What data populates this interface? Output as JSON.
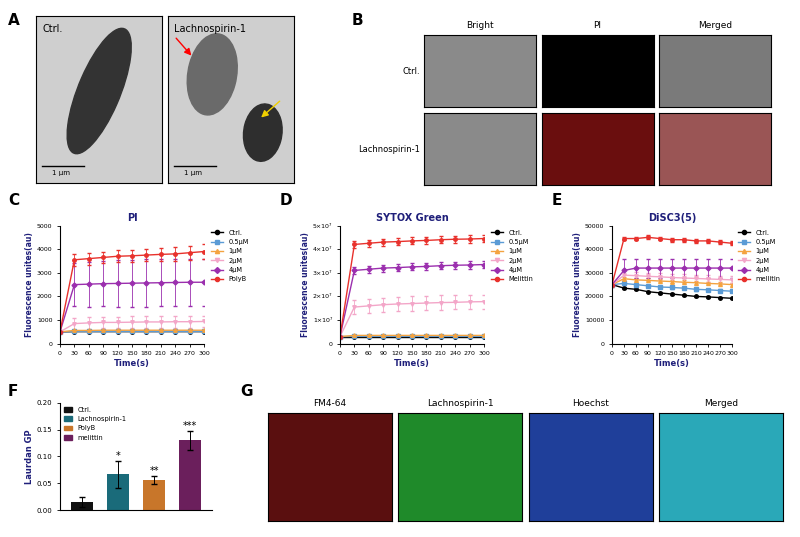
{
  "chart_data": [
    {
      "panel": "C",
      "type": "line",
      "title": "PI",
      "x_label": "Time(s)",
      "y_label": "Fluorescence unites(au)",
      "x": [
        0,
        30,
        60,
        90,
        120,
        150,
        180,
        210,
        240,
        270,
        300
      ],
      "xlim": [
        0,
        300
      ],
      "xticks": [
        0,
        30,
        60,
        90,
        120,
        150,
        180,
        210,
        240,
        270,
        300
      ],
      "ylim": [
        0,
        5000
      ],
      "yticks": [
        0,
        1000,
        2000,
        3000,
        4000,
        5000
      ],
      "legend": "upper left",
      "series": [
        {
          "name": "Ctrl.",
          "color": "#000000",
          "marker": "circle",
          "values": [
            500,
            510,
            510,
            510,
            510,
            510,
            510,
            510,
            510,
            510,
            510
          ],
          "errors": [
            20,
            20,
            20,
            20,
            20,
            20,
            20,
            20,
            20,
            20,
            20
          ]
        },
        {
          "name": "0.5μM",
          "color": "#5b9bd5",
          "marker": "square",
          "values": [
            500,
            520,
            520,
            520,
            520,
            520,
            520,
            520,
            520,
            520,
            520
          ],
          "errors": [
            20,
            20,
            20,
            20,
            20,
            20,
            20,
            20,
            20,
            20,
            20
          ]
        },
        {
          "name": "1μM",
          "color": "#f4a340",
          "marker": "triangle",
          "values": [
            500,
            560,
            560,
            570,
            570,
            570,
            570,
            570,
            570,
            570,
            570
          ],
          "errors": [
            30,
            30,
            30,
            30,
            30,
            30,
            30,
            30,
            30,
            30,
            30
          ]
        },
        {
          "name": "2μM",
          "color": "#f3a6c8",
          "marker": "triangle_down",
          "values": [
            500,
            850,
            880,
            900,
            900,
            910,
            920,
            920,
            930,
            930,
            940
          ],
          "errors": [
            0,
            250,
            250,
            250,
            250,
            250,
            250,
            250,
            250,
            250,
            250
          ]
        },
        {
          "name": "4μM",
          "color": "#9b2fae",
          "marker": "diamond",
          "values": [
            500,
            2500,
            2520,
            2540,
            2550,
            2560,
            2570,
            2580,
            2590,
            2600,
            2600
          ],
          "errors": [
            0,
            900,
            950,
            950,
            1000,
            1000,
            1000,
            1000,
            1000,
            1000,
            1000
          ]
        },
        {
          "name": "PolyB",
          "color": "#e8312c",
          "marker": "circle",
          "values": [
            500,
            3550,
            3600,
            3650,
            3700,
            3720,
            3750,
            3780,
            3800,
            3850,
            3900
          ],
          "errors": [
            0,
            250,
            250,
            250,
            250,
            260,
            270,
            280,
            290,
            300,
            300
          ]
        }
      ]
    },
    {
      "panel": "D",
      "type": "line",
      "title": "SYTOX Green",
      "x_label": "Time(s)",
      "y_label": "Fluorescence unites(au)",
      "x": [
        0,
        30,
        60,
        90,
        120,
        150,
        180,
        210,
        240,
        270,
        300
      ],
      "xlim": [
        0,
        300
      ],
      "xticks": [
        0,
        30,
        60,
        90,
        120,
        150,
        180,
        210,
        240,
        270,
        300
      ],
      "ylim": [
        0,
        50000000
      ],
      "yticks": [
        0,
        {
          "value": 10000000,
          "label": "1×10⁷"
        },
        {
          "value": 20000000,
          "label": "2×10⁷"
        },
        {
          "value": 30000000,
          "label": "3×10⁷"
        },
        {
          "value": 40000000,
          "label": "4×10⁷"
        },
        {
          "value": 50000000,
          "label": "5×10⁷"
        }
      ],
      "legend": "upper left",
      "series": [
        {
          "name": "Ctrl.",
          "color": "#000000",
          "marker": "circle",
          "values": [
            3000000,
            3000000,
            3000000,
            3000000,
            3000000,
            3000000,
            3000000,
            3000000,
            3000000,
            3000000,
            3000000
          ],
          "errors": [
            300000,
            300000,
            300000,
            300000,
            300000,
            300000,
            300000,
            300000,
            300000,
            300000,
            300000
          ]
        },
        {
          "name": "0.5μM",
          "color": "#5b9bd5",
          "marker": "square",
          "values": [
            3000000,
            3100000,
            3100000,
            3100000,
            3100000,
            3100000,
            3100000,
            3100000,
            3100000,
            3100000,
            3100000
          ],
          "errors": [
            300000,
            300000,
            300000,
            300000,
            300000,
            300000,
            300000,
            300000,
            300000,
            300000,
            300000
          ]
        },
        {
          "name": "1μM",
          "color": "#f4a340",
          "marker": "triangle",
          "values": [
            3000000,
            3500000,
            3500000,
            3500000,
            3500000,
            3500000,
            3500000,
            3500000,
            3500000,
            3500000,
            3500000
          ],
          "errors": [
            300000,
            300000,
            300000,
            300000,
            300000,
            300000,
            300000,
            300000,
            300000,
            300000,
            300000
          ]
        },
        {
          "name": "2μM",
          "color": "#f3a6c8",
          "marker": "triangle_down",
          "values": [
            3000000,
            15500000,
            16000000,
            16500000,
            16800000,
            17000000,
            17200000,
            17400000,
            17500000,
            17700000,
            17800000
          ],
          "errors": [
            0,
            3000000,
            3000000,
            3000000,
            3000000,
            3000000,
            3000000,
            3000000,
            3000000,
            3000000,
            3000000
          ]
        },
        {
          "name": "4μM",
          "color": "#9b2fae",
          "marker": "diamond",
          "values": [
            3000000,
            31000000,
            31500000,
            32000000,
            32200000,
            32500000,
            32700000,
            33000000,
            33200000,
            33300000,
            33500000
          ],
          "errors": [
            0,
            1500000,
            1500000,
            1500000,
            1500000,
            1500000,
            1500000,
            1500000,
            1500000,
            1500000,
            1500000
          ]
        },
        {
          "name": "Melittin",
          "color": "#e8312c",
          "marker": "circle",
          "values": [
            3000000,
            42000000,
            42500000,
            43000000,
            43200000,
            43500000,
            43700000,
            44000000,
            44200000,
            44300000,
            44500000
          ],
          "errors": [
            0,
            1500000,
            1500000,
            1500000,
            1500000,
            1500000,
            1500000,
            1500000,
            1500000,
            1500000,
            1500000
          ]
        }
      ]
    },
    {
      "panel": "E",
      "type": "line",
      "title": "DiSC3(5)",
      "x_label": "Time(s)",
      "y_label": "Fluorescence unites(au)",
      "x": [
        0,
        30,
        60,
        90,
        120,
        150,
        180,
        210,
        240,
        270,
        300
      ],
      "xlim": [
        0,
        300
      ],
      "xticks": [
        0,
        30,
        60,
        90,
        120,
        150,
        180,
        210,
        240,
        270,
        300
      ],
      "ylim": [
        0,
        50000
      ],
      "yticks": [
        0,
        10000,
        20000,
        30000,
        40000,
        50000
      ],
      "legend": "upper left",
      "series": [
        {
          "name": "Ctrl.",
          "color": "#000000",
          "marker": "circle",
          "values": [
            25000,
            23500,
            23000,
            22000,
            21500,
            21000,
            20500,
            20000,
            19800,
            19500,
            19200
          ],
          "errors": [
            300,
            300,
            300,
            300,
            300,
            300,
            300,
            300,
            300,
            300,
            300
          ]
        },
        {
          "name": "0.5μM",
          "color": "#5b9bd5",
          "marker": "square",
          "values": [
            25000,
            25500,
            25000,
            24500,
            24000,
            23800,
            23500,
            23000,
            22800,
            22500,
            22200
          ],
          "errors": [
            500,
            500,
            500,
            500,
            500,
            500,
            500,
            500,
            500,
            500,
            500
          ]
        },
        {
          "name": "1μM",
          "color": "#f4a340",
          "marker": "triangle",
          "values": [
            25000,
            27500,
            27000,
            26800,
            26500,
            26300,
            26000,
            25800,
            25500,
            25300,
            25000
          ],
          "errors": [
            800,
            800,
            800,
            800,
            800,
            800,
            800,
            800,
            800,
            800,
            800
          ]
        },
        {
          "name": "2μM",
          "color": "#f3a6c8",
          "marker": "triangle_down",
          "values": [
            25000,
            29000,
            28800,
            28500,
            28300,
            28000,
            27800,
            27600,
            27400,
            27200,
            27000
          ],
          "errors": [
            1000,
            2000,
            1500,
            1500,
            1500,
            1500,
            1500,
            1500,
            1500,
            1500,
            1500
          ]
        },
        {
          "name": "4μM",
          "color": "#9b2fae",
          "marker": "diamond",
          "values": [
            25000,
            31000,
            32000,
            32000,
            32000,
            32000,
            32000,
            32000,
            32000,
            32000,
            32000
          ],
          "errors": [
            0,
            5000,
            4000,
            4000,
            4000,
            4000,
            4000,
            4000,
            4000,
            4000,
            4000
          ]
        },
        {
          "name": "mellitin",
          "color": "#e8312c",
          "marker": "circle",
          "values": [
            25000,
            44500,
            44500,
            45000,
            44500,
            44000,
            44000,
            43500,
            43500,
            43000,
            42500
          ],
          "errors": [
            0,
            800,
            800,
            800,
            800,
            800,
            800,
            800,
            800,
            800,
            800
          ]
        }
      ]
    },
    {
      "panel": "F",
      "type": "bar",
      "y_label": "Laurdan GP",
      "categories": [
        "Ctrl.",
        "Lachnospirin-1",
        "PolyB",
        "melittin"
      ],
      "values": [
        0.015,
        0.067,
        0.056,
        0.13
      ],
      "errors": [
        0.01,
        0.025,
        0.008,
        0.018
      ],
      "colors": [
        "#111111",
        "#1a6b7a",
        "#c8762a",
        "#6b1f5c"
      ],
      "significance": [
        null,
        "*",
        "**",
        "***"
      ],
      "ylim": [
        0,
        0.2
      ],
      "yticks": [
        {
          "value": 0,
          "label": "0.00"
        },
        {
          "value": 0.05,
          "label": "0.05"
        },
        {
          "value": 0.1,
          "label": "0.10"
        },
        {
          "value": 0.15,
          "label": "0.15"
        },
        {
          "value": 0.2,
          "label": "0.20"
        }
      ],
      "legend": "upper left",
      "tick_labels": "y"
    }
  ],
  "images": {
    "A": {
      "panel": "A",
      "images": [
        {
          "label": "Ctrl.",
          "scale_bar": "1 μm"
        },
        {
          "label": "Lachnospirin-1",
          "scale_bar": "1 μm"
        }
      ]
    },
    "B": {
      "panel": "B",
      "columns": [
        "Bright",
        "PI",
        "Merged"
      ],
      "rows": [
        "Ctrl.",
        "Lachnospirin-1"
      ]
    },
    "G": {
      "panel": "G",
      "columns": [
        "FM4-64",
        "Lachnospirin-1",
        "Hoechst",
        "Merged"
      ]
    }
  }
}
